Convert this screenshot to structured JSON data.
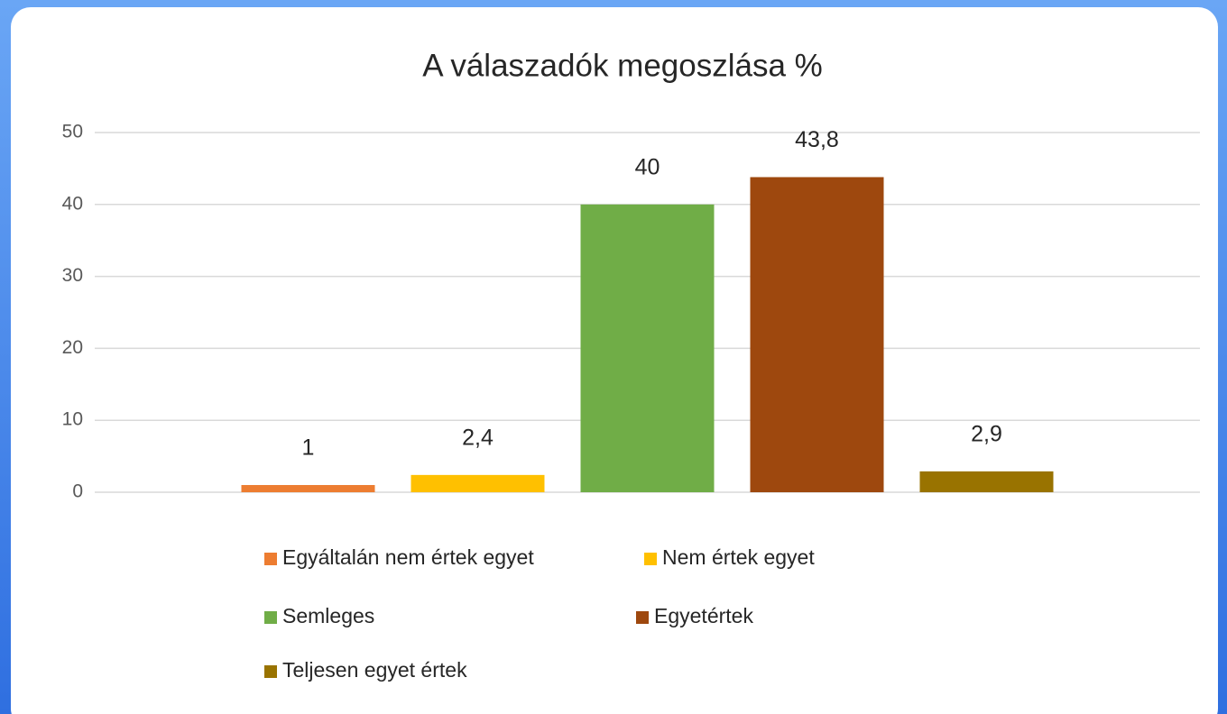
{
  "chart_data": {
    "type": "bar",
    "title": "A válaszadók megoszlása %",
    "series": [
      {
        "name": "Egyáltalán nem értek egyet",
        "color": "#ed7d31",
        "values": [
          1
        ],
        "value_labels": [
          "1"
        ]
      },
      {
        "name": "Nem értek egyet",
        "color": "#ffc000",
        "values": [
          2.4
        ],
        "value_labels": [
          "2,4"
        ]
      },
      {
        "name": "Semleges",
        "color": "#70ad47",
        "values": [
          40
        ],
        "value_labels": [
          "40"
        ]
      },
      {
        "name": "Egyetértek",
        "color": "#9e480e",
        "values": [
          43.8
        ],
        "value_labels": [
          "43,8"
        ]
      },
      {
        "name": "Teljesen egyet értek",
        "color": "#997300",
        "values": [
          2.9
        ],
        "value_labels": [
          "2,9"
        ]
      }
    ],
    "ylim": [
      0,
      50
    ],
    "yticks": [
      0,
      10,
      20,
      30,
      40,
      50
    ],
    "grid": true,
    "legend": "bottom"
  }
}
